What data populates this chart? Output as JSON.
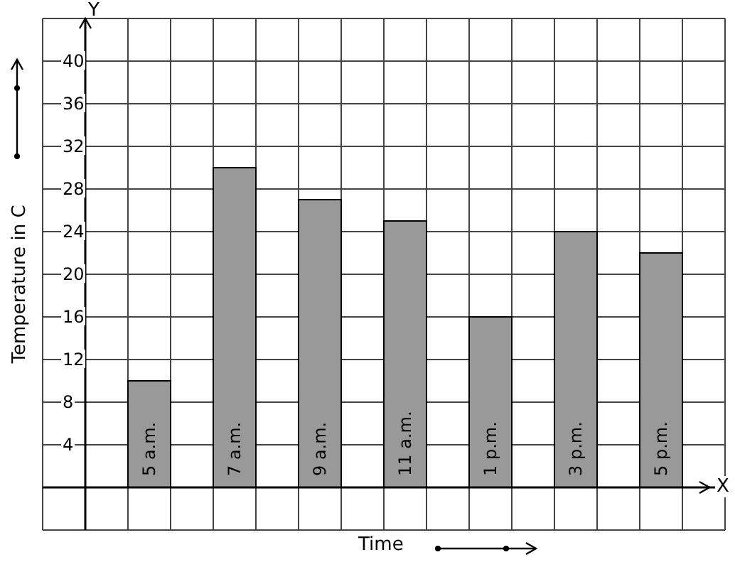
{
  "chart_data": {
    "type": "bar",
    "xlabel": "Time",
    "ylabel": "Temperature in C",
    "categories": [
      "5 a.m.",
      "7 a.m.",
      "9 a.m.",
      "11 a.m.",
      "1 p.m.",
      "3 p.m.",
      "5 p.m."
    ],
    "values": [
      10,
      30,
      27,
      25,
      16,
      24,
      22
    ],
    "color": "#999999",
    "ylim": [
      -4,
      44
    ],
    "yticks": [
      4,
      8,
      12,
      16,
      20,
      24,
      28,
      32,
      36,
      40
    ],
    "grid": true,
    "annotations": [
      "Y",
      "X"
    ]
  }
}
